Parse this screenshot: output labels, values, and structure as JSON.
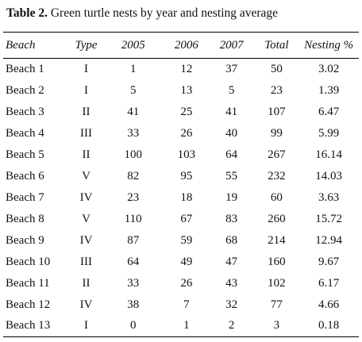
{
  "caption": {
    "label": "Table 2.",
    "text": "Green turtle nests by year and nesting average"
  },
  "table": {
    "headers": [
      "Beach",
      "Type",
      "2005",
      "2006",
      "2007",
      "Total",
      "Nesting %"
    ],
    "rows": [
      [
        "Beach 1",
        "I",
        "1",
        "12",
        "37",
        "50",
        "3.02"
      ],
      [
        "Beach 2",
        "I",
        "5",
        "13",
        "5",
        "23",
        "1.39"
      ],
      [
        "Beach 3",
        "II",
        "41",
        "25",
        "41",
        "107",
        "6.47"
      ],
      [
        "Beach 4",
        "III",
        "33",
        "26",
        "40",
        "99",
        "5.99"
      ],
      [
        "Beach 5",
        "II",
        "100",
        "103",
        "64",
        "267",
        "16.14"
      ],
      [
        "Beach 6",
        "V",
        "82",
        "95",
        "55",
        "232",
        "14.03"
      ],
      [
        "Beach 7",
        "IV",
        "23",
        "18",
        "19",
        "60",
        "3.63"
      ],
      [
        "Beach 8",
        "V",
        "110",
        "67",
        "83",
        "260",
        "15.72"
      ],
      [
        "Beach 9",
        "IV",
        "87",
        "59",
        "68",
        "214",
        "12.94"
      ],
      [
        "Beach 10",
        "III",
        "64",
        "49",
        "47",
        "160",
        "9.67"
      ],
      [
        "Beach 11",
        "II",
        "33",
        "26",
        "43",
        "102",
        "6.17"
      ],
      [
        "Beach 12",
        "IV",
        "38",
        "7",
        "32",
        "77",
        "4.66"
      ],
      [
        "Beach 13",
        "I",
        "0",
        "1",
        "2",
        "3",
        "0.18"
      ]
    ]
  }
}
